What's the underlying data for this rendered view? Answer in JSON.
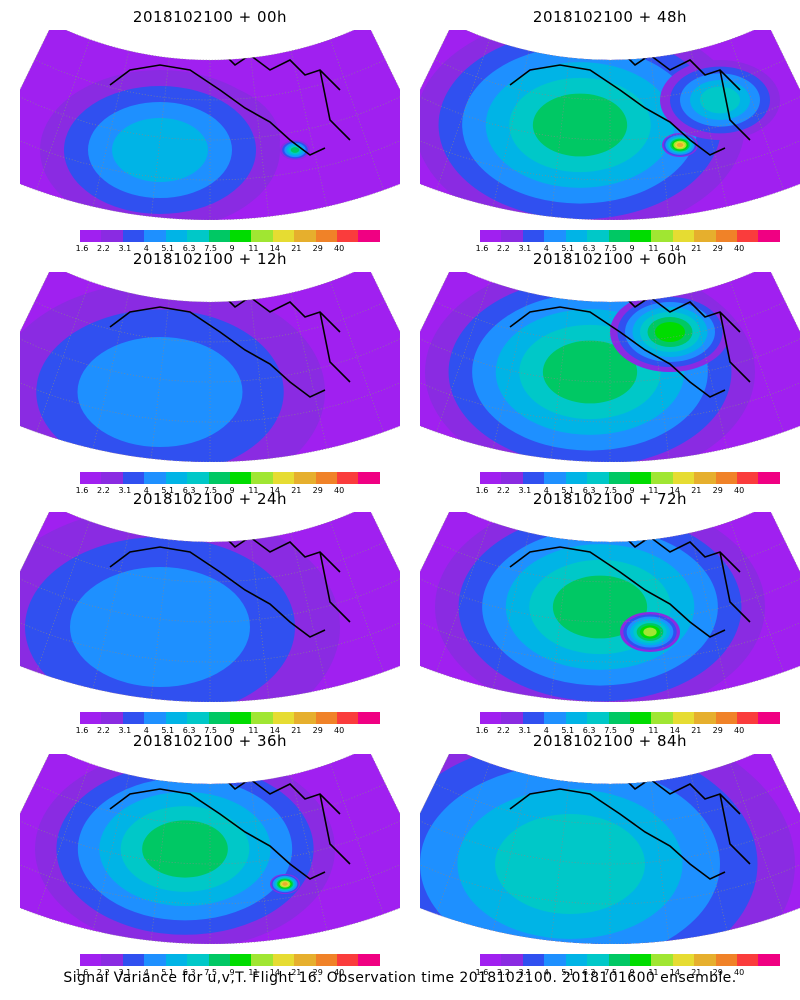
{
  "panels": [
    {
      "title": "2018102100 + 00h"
    },
    {
      "title": "2018102100 + 48h"
    },
    {
      "title": "2018102100 + 12h"
    },
    {
      "title": "2018102100 + 60h"
    },
    {
      "title": "2018102100 + 24h"
    },
    {
      "title": "2018102100 + 72h"
    },
    {
      "title": "2018102100 + 36h"
    },
    {
      "title": "2018102100 + 84h"
    }
  ],
  "colorbar": {
    "labels": [
      "1.6",
      "2.2",
      "3.1",
      "4",
      "5.1",
      "6.3",
      "7.5",
      "9",
      "11",
      "14",
      "21",
      "29",
      "40"
    ],
    "colors": [
      "#a020f0",
      "#8a2be2",
      "#3050f0",
      "#1e90ff",
      "#00b4e6",
      "#00c8c8",
      "#00c864",
      "#00dc00",
      "#a0e632",
      "#e6dc32",
      "#e6af2d",
      "#f08228",
      "#fa3c3c",
      "#f00082"
    ]
  },
  "footer": "Signal Variance for u,v,T. Flight 16. Observation time 2018102100. 2018101600 ensemble."
}
